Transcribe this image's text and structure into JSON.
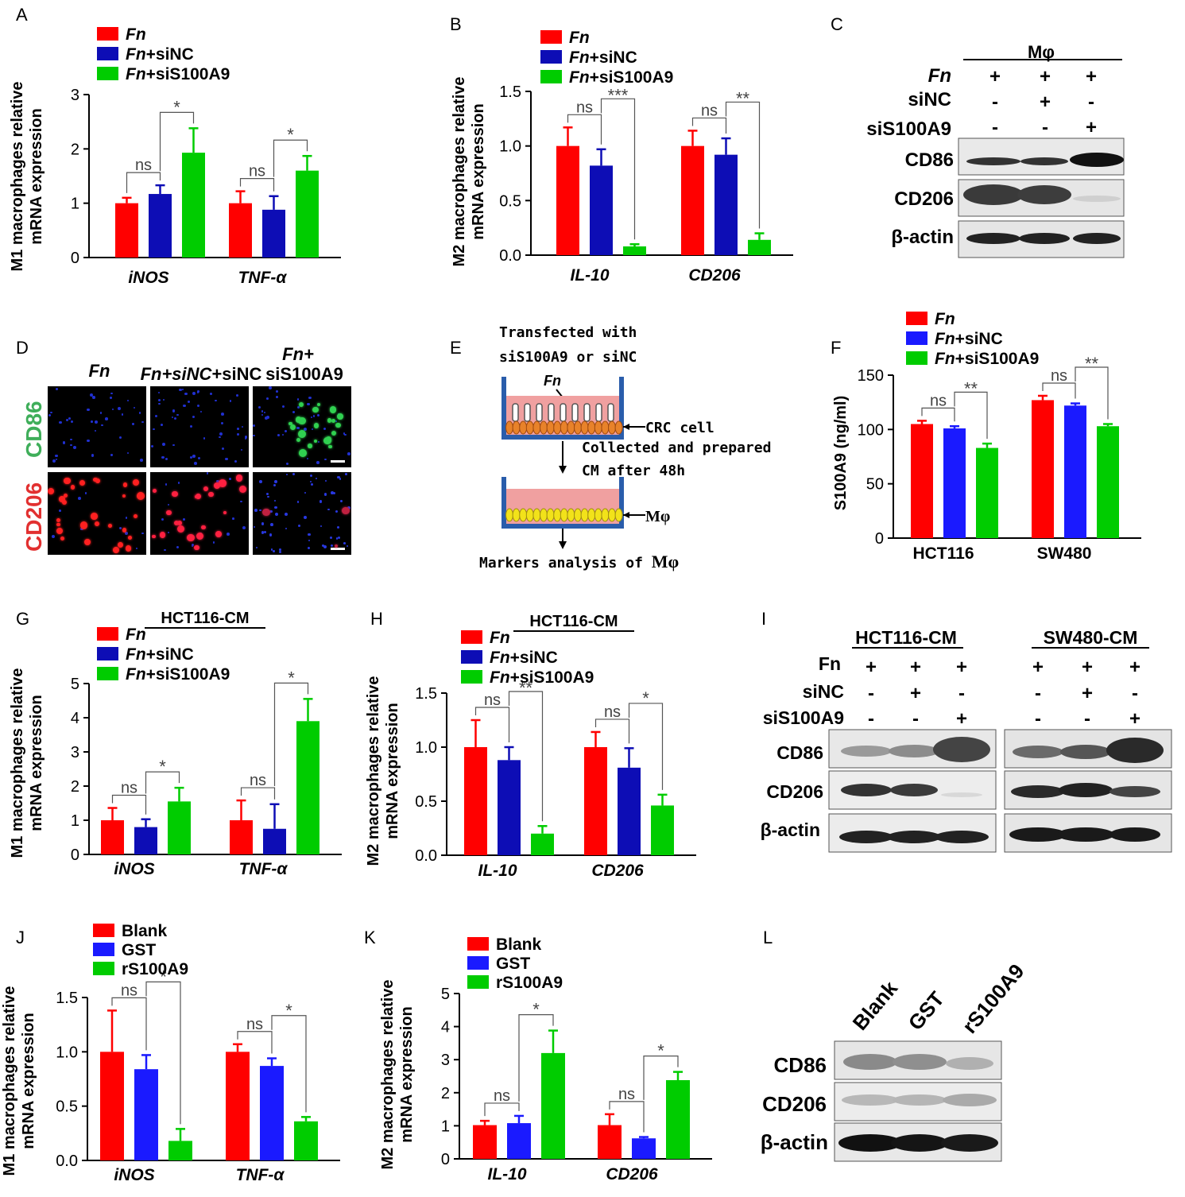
{
  "colors": {
    "red": "#ff0000",
    "darkblue": "#0d0db5",
    "blue": "#1a1aff",
    "green": "#00cc00",
    "grayTable": "#ffffff"
  },
  "panels": {
    "A": {
      "letter": "A"
    },
    "B": {
      "letter": "B"
    },
    "C": {
      "letter": "C"
    },
    "D": {
      "letter": "D"
    },
    "E": {
      "letter": "E"
    },
    "F": {
      "letter": "F"
    },
    "G": {
      "letter": "G"
    },
    "H": {
      "letter": "H"
    },
    "I": {
      "letter": "I"
    },
    "J": {
      "letter": "J"
    },
    "K": {
      "letter": "K"
    },
    "L": {
      "letter": "L"
    }
  },
  "chart_data": [
    {
      "id": "A",
      "type": "bar",
      "ylabel": [
        "M1 macrophages relative",
        "mRNA expression"
      ],
      "categories": [
        "iNOS",
        "TNF-α"
      ],
      "ylim": [
        0,
        3
      ],
      "yticks": [
        "0",
        "1",
        "2",
        "3"
      ],
      "series": [
        {
          "name": "Fn",
          "values": [
            1.0,
            1.0
          ],
          "err": [
            0.1,
            0.22
          ]
        },
        {
          "name": "Fn+siNC",
          "values": [
            1.17,
            0.88
          ],
          "err": [
            0.16,
            0.25
          ]
        },
        {
          "name": "Fn+siS100A9",
          "values": [
            1.93,
            1.6
          ],
          "err": [
            0.45,
            0.27
          ]
        }
      ],
      "significance": [
        [
          "ns",
          "*"
        ],
        [
          "ns",
          "*"
        ]
      ]
    },
    {
      "id": "B",
      "type": "bar",
      "ylabel": [
        "M2 macrophages relative",
        "mRNA expression"
      ],
      "categories": [
        "IL-10",
        "CD206"
      ],
      "ylim": [
        0,
        1.5
      ],
      "yticks": [
        "0.0",
        "0.5",
        "1.0",
        "1.5"
      ],
      "series": [
        {
          "name": "Fn",
          "values": [
            1.0,
            1.0
          ],
          "err": [
            0.17,
            0.14
          ]
        },
        {
          "name": "Fn+siNC",
          "values": [
            0.82,
            0.92
          ],
          "err": [
            0.15,
            0.15
          ]
        },
        {
          "name": "Fn+siS100A9",
          "values": [
            0.08,
            0.14
          ],
          "err": [
            0.02,
            0.06
          ]
        }
      ],
      "significance": [
        [
          "ns",
          "***"
        ],
        [
          "ns",
          "**"
        ]
      ]
    },
    {
      "id": "F",
      "type": "bar",
      "ylabel": [
        "S100A9 (ng/ml)"
      ],
      "categories": [
        "HCT116",
        "SW480"
      ],
      "ylim": [
        0,
        150
      ],
      "yticks": [
        "0",
        "50",
        "100",
        "150"
      ],
      "series": [
        {
          "name": "Fn",
          "values": [
            105,
            127
          ],
          "err": [
            3,
            4
          ]
        },
        {
          "name": "Fn+siNC",
          "values": [
            101,
            122
          ],
          "err": [
            2,
            2
          ]
        },
        {
          "name": "Fn+siS100A9",
          "values": [
            83,
            103
          ],
          "err": [
            4,
            2
          ]
        }
      ],
      "significance": [
        [
          "ns",
          "**"
        ],
        [
          "ns",
          "**"
        ]
      ]
    },
    {
      "id": "G",
      "type": "bar",
      "title": "HCT116-CM",
      "ylabel": [
        "M1 macrophages relative",
        "mRNA expression"
      ],
      "categories": [
        "iNOS",
        "TNF-α"
      ],
      "ylim": [
        0,
        5
      ],
      "yticks": [
        "0",
        "1",
        "2",
        "3",
        "4",
        "5"
      ],
      "series": [
        {
          "name": "Fn",
          "values": [
            1.0,
            1.0
          ],
          "err": [
            0.36,
            0.58
          ]
        },
        {
          "name": "Fn+siNC",
          "values": [
            0.8,
            0.75
          ],
          "err": [
            0.23,
            0.72
          ]
        },
        {
          "name": "Fn+siS100A9",
          "values": [
            1.55,
            3.9
          ],
          "err": [
            0.4,
            0.65
          ]
        }
      ],
      "significance": [
        [
          "ns",
          "*"
        ],
        [
          "ns",
          "*"
        ]
      ]
    },
    {
      "id": "H",
      "type": "bar",
      "title": "HCT116-CM",
      "ylabel": [
        "M2 macrophages relative",
        "mRNA expression"
      ],
      "categories": [
        "IL-10",
        "CD206"
      ],
      "ylim": [
        0,
        1.5
      ],
      "yticks": [
        "0.0",
        "0.5",
        "1.0",
        "1.5"
      ],
      "series": [
        {
          "name": "Fn",
          "values": [
            1.0,
            1.0
          ],
          "err": [
            0.25,
            0.14
          ]
        },
        {
          "name": "Fn+siNC",
          "values": [
            0.88,
            0.81
          ],
          "err": [
            0.12,
            0.18
          ]
        },
        {
          "name": "Fn+siS100A9",
          "values": [
            0.2,
            0.46
          ],
          "err": [
            0.07,
            0.1
          ]
        }
      ],
      "significance": [
        [
          "ns",
          "**"
        ],
        [
          "ns",
          "*"
        ]
      ]
    },
    {
      "id": "J",
      "type": "bar",
      "ylabel": [
        "M1 macrophages relative",
        "mRNA expression"
      ],
      "categories": [
        "iNOS",
        "TNF-α"
      ],
      "ylim": [
        0,
        1.5
      ],
      "yticks": [
        "0.0",
        "0.5",
        "1.0",
        "1.5"
      ],
      "series": [
        {
          "name": "Blank",
          "values": [
            1.0,
            1.0
          ],
          "err": [
            0.38,
            0.07
          ]
        },
        {
          "name": "GST",
          "values": [
            0.84,
            0.87
          ],
          "err": [
            0.13,
            0.07
          ]
        },
        {
          "name": "rS100A9",
          "values": [
            0.18,
            0.36
          ],
          "err": [
            0.11,
            0.04
          ]
        }
      ],
      "significance": [
        [
          "ns",
          "*"
        ],
        [
          "ns",
          "*"
        ]
      ]
    },
    {
      "id": "K",
      "type": "bar",
      "ylabel": [
        "M2 macrophages relative",
        "mRNA expression"
      ],
      "categories": [
        "IL-10",
        "CD206"
      ],
      "ylim": [
        0,
        5
      ],
      "yticks": [
        "0",
        "1",
        "2",
        "3",
        "4",
        "5"
      ],
      "series": [
        {
          "name": "Blank",
          "values": [
            1.02,
            1.02
          ],
          "err": [
            0.13,
            0.33
          ]
        },
        {
          "name": "GST",
          "values": [
            1.08,
            0.62
          ],
          "err": [
            0.22,
            0.04
          ]
        },
        {
          "name": "rS100A9",
          "values": [
            3.2,
            2.38
          ],
          "err": [
            0.68,
            0.25
          ]
        }
      ],
      "significance": [
        [
          "ns",
          "*"
        ],
        [
          "ns",
          "*"
        ]
      ]
    }
  ],
  "blots": {
    "C": {
      "header": "Mφ",
      "rows": [
        {
          "label": "Fn",
          "signs": [
            "+",
            "+",
            "+"
          ]
        },
        {
          "label": "siNC",
          "signs": [
            "-",
            "+",
            "-"
          ]
        },
        {
          "label": "siS100A9",
          "signs": [
            "-",
            "-",
            "+"
          ]
        }
      ],
      "bands": [
        "CD86",
        "CD206",
        "β-actin"
      ]
    },
    "I": {
      "groups": [
        "HCT116-CM",
        "SW480-CM"
      ],
      "rows": [
        {
          "label": "Fn",
          "signs": [
            "+",
            "+",
            "+"
          ]
        },
        {
          "label": "siNC",
          "signs": [
            "-",
            "+",
            "-"
          ]
        },
        {
          "label": "siS100A9",
          "signs": [
            "-",
            "-",
            "+"
          ]
        }
      ],
      "bands": [
        "CD86",
        "CD206",
        "β-actin"
      ]
    },
    "L": {
      "lanes": [
        "Blank",
        "GST",
        "rS100A9"
      ],
      "bands": [
        "CD86",
        "CD206",
        "β-actin"
      ]
    }
  },
  "micrographs": {
    "columns": [
      "Fn",
      "Fn+siNC",
      "Fn+",
      "siS100A9"
    ],
    "rows": [
      "CD86",
      "CD206"
    ]
  },
  "schematic": {
    "line1": "Transfected with",
    "line2": "siS100A9 or siNC",
    "fn": "Fn",
    "crc": "CRC cell",
    "collected1": "Collected and prepared",
    "collected2": "CM after 48h",
    "mphi": "Mφ",
    "analysis": "Markers analysis of ",
    "analysis_mphi": "Mφ"
  }
}
